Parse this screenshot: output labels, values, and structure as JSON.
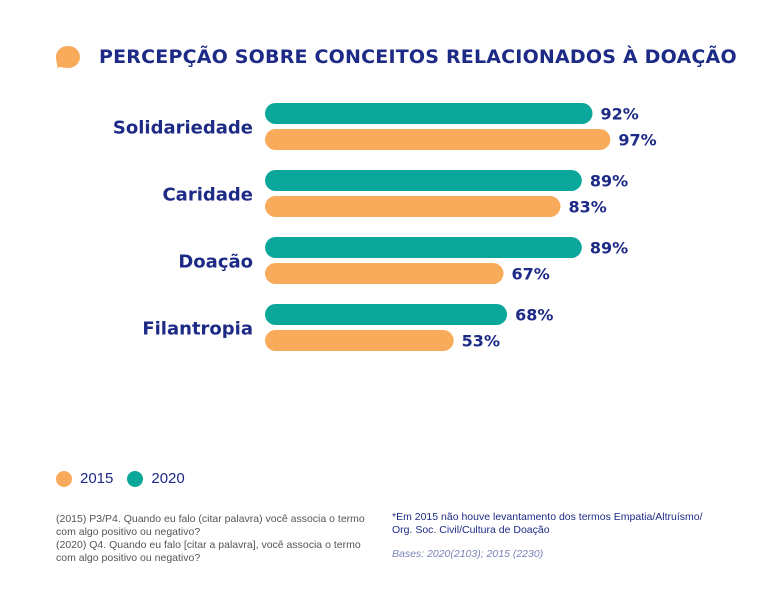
{
  "title": "PERCEPÇÃO SOBRE CONCEITOS RELACIONADOS À DOAÇÃO",
  "colors": {
    "y2015": "#f9ab5c",
    "y2020": "#0aa79a",
    "navy": "#1d2b86"
  },
  "legend": [
    {
      "label": "2015",
      "color": "#f9ab5c"
    },
    {
      "label": "2020",
      "color": "#0aa79a"
    }
  ],
  "chart_data": {
    "type": "bar",
    "orientation": "horizontal",
    "categories": [
      "Solidariedade",
      "Caridade",
      "Doação",
      "Filantropia"
    ],
    "series": [
      {
        "name": "2020",
        "values": [
          92,
          89,
          89,
          68
        ],
        "labels": [
          "92%",
          "89%",
          "89%",
          "68%"
        ],
        "color": "#0aa79a"
      },
      {
        "name": "2015",
        "values": [
          97,
          83,
          67,
          53
        ],
        "labels": [
          "97%",
          "83%",
          "67%",
          "53%"
        ],
        "color": "#f9ab5c"
      }
    ],
    "xlim": [
      0,
      100
    ],
    "grid": false,
    "legend_position": "bottom-left"
  },
  "notes": {
    "left": "(2015) P3/P4. Quando eu falo (citar palavra) você associa o termo com algo positivo ou negativo?\n(2020) Q4. Quando eu falo [citar a palavra], você associa o termo com algo positivo ou negativo?",
    "right": "*Em 2015 não houve levantamento dos termos Empatia/Altruísmo/ Org. Soc. Civil/Cultura de Doação",
    "bases": "Bases: 2020(2103); 2015 (2230)"
  }
}
